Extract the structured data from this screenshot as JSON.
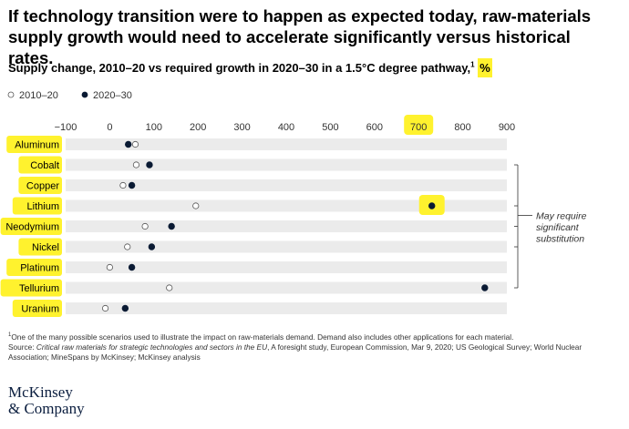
{
  "title": "If technology transition were to happen as expected today, raw-materials supply growth would need to accelerate significantly versus historical rates.",
  "subtitle": {
    "text": "Supply change, 2010–20 vs required growth in 2020–30 in a 1.5°C degree pathway,",
    "footnote_ref": "1",
    "unit": "%"
  },
  "annotation": "May require significant substitution",
  "footnote": {
    "marker": "1",
    "note": "One of the many possible scenarios used to illustrate the impact on raw-materials demand. Demand also includes other applications for each material.",
    "source_prefix": "Source: ",
    "source_title": "Critical raw materials for strategic technologies and sectors in the EU",
    "source_rest": ", A foresight study, European Commission, Mar 9, 2020; US Geological Survey; World Nuclear Association; MineSpans by McKinsey; McKinsey analysis"
  },
  "logo": {
    "line1": "McKinsey",
    "line2": "& Company"
  },
  "colors": {
    "highlight": "#fff22e",
    "band": "#ebebeb",
    "marker_2020_30": "#0a1a33",
    "marker_2010_20": "#ffffff",
    "text": "#000000",
    "logo": "#0b1e3f"
  },
  "chart_data": {
    "type": "scatter",
    "xlim": [
      -100,
      900
    ],
    "xticks": [
      -100,
      0,
      100,
      200,
      300,
      400,
      500,
      600,
      700,
      800,
      900
    ],
    "xtick_labels": [
      "−100",
      "0",
      "100",
      "200",
      "300",
      "400",
      "500",
      "600",
      "700",
      "800",
      "900"
    ],
    "highlighted_tick": 700,
    "legend_position": "top-left",
    "categories": [
      "Aluminum",
      "Cobalt",
      "Copper",
      "Lithium",
      "Neodymium",
      "Nickel",
      "Platinum",
      "Tellurium",
      "Uranium"
    ],
    "series": [
      {
        "name": "2010–20",
        "marker": "open-circle",
        "values": [
          58,
          60,
          30,
          195,
          80,
          40,
          0,
          135,
          -10
        ]
      },
      {
        "name": "2020–30",
        "marker": "filled-circle",
        "values": [
          42,
          90,
          50,
          730,
          140,
          95,
          50,
          850,
          35
        ]
      }
    ],
    "highlighted_categories": [
      "Aluminum",
      "Cobalt",
      "Copper",
      "Lithium",
      "Neodymium",
      "Nickel",
      "Platinum",
      "Tellurium",
      "Uranium"
    ],
    "highlighted_points": [
      {
        "category": "Lithium",
        "series": "2020–30"
      }
    ],
    "bracket_categories": [
      "Cobalt",
      "Lithium",
      "Neodymium",
      "Nickel",
      "Tellurium"
    ]
  }
}
